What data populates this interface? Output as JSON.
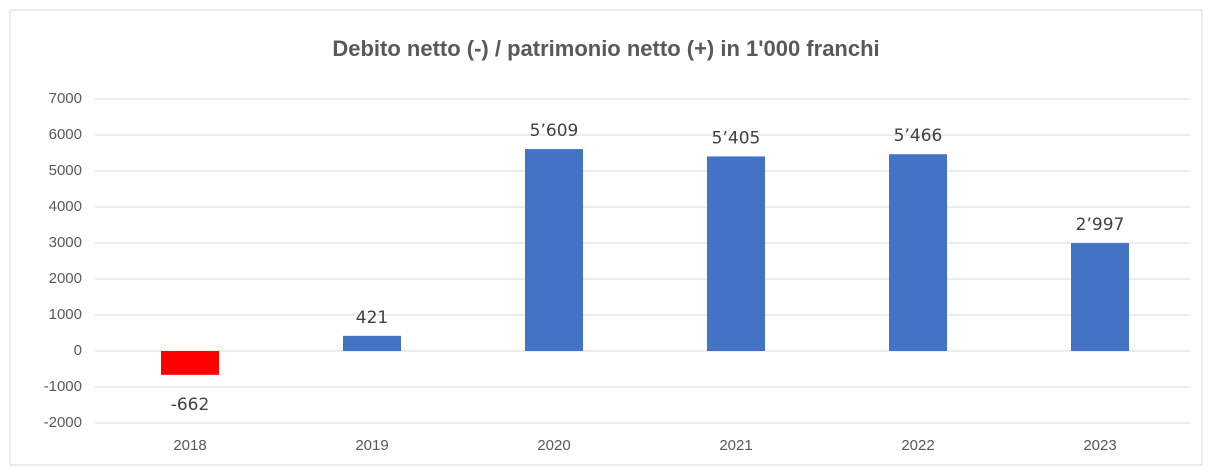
{
  "chart_data": {
    "type": "bar",
    "title": "Debito netto (-) / patrimonio netto (+) in 1'000 franchi",
    "categories": [
      "2018",
      "2019",
      "2020",
      "2021",
      "2022",
      "2023"
    ],
    "values": [
      -662,
      421,
      5609,
      5405,
      5466,
      2997
    ],
    "value_labels": [
      "-662",
      "421",
      "5’609",
      "5’405",
      "5’466",
      "2’997"
    ],
    "colors": [
      "#ff0000",
      "#4472c4",
      "#4472c4",
      "#4472c4",
      "#4472c4",
      "#4472c4"
    ],
    "ylim": [
      -2000,
      7000
    ],
    "yticks": [
      -2000,
      -1000,
      0,
      1000,
      2000,
      3000,
      4000,
      5000,
      6000,
      7000
    ],
    "grid": true
  }
}
